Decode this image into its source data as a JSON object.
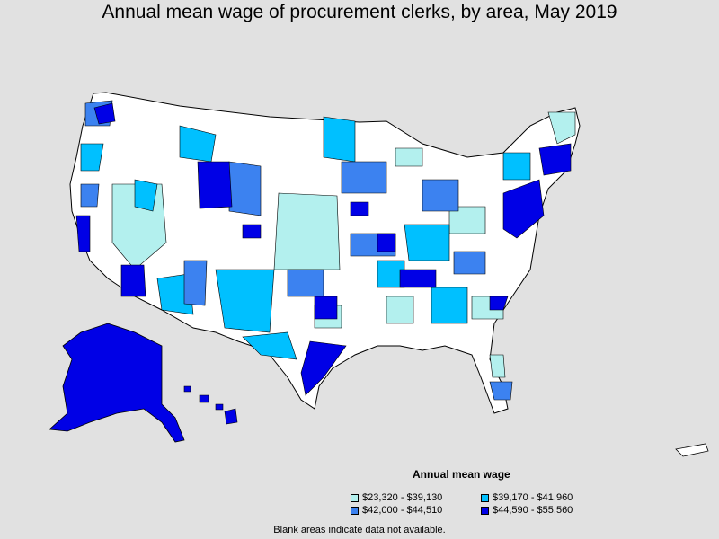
{
  "title": "Annual mean wage of procurement clerks, by area, May 2019",
  "legend": {
    "title": "Annual mean wage",
    "items": [
      {
        "label": "$23,320 - $39,130",
        "color": "#b3f0ee"
      },
      {
        "label": "$39,170 - $41,960",
        "color": "#00c0ff"
      },
      {
        "label": "$42,000 - $44,510",
        "color": "#3c82f0"
      },
      {
        "label": "$44,590 - $55,560",
        "color": "#0000e6"
      }
    ]
  },
  "footnote": "Blank areas indicate data not available.",
  "colors": {
    "background": "#e1e1e1",
    "no_data": "#ffffff",
    "border": "#000000"
  }
}
